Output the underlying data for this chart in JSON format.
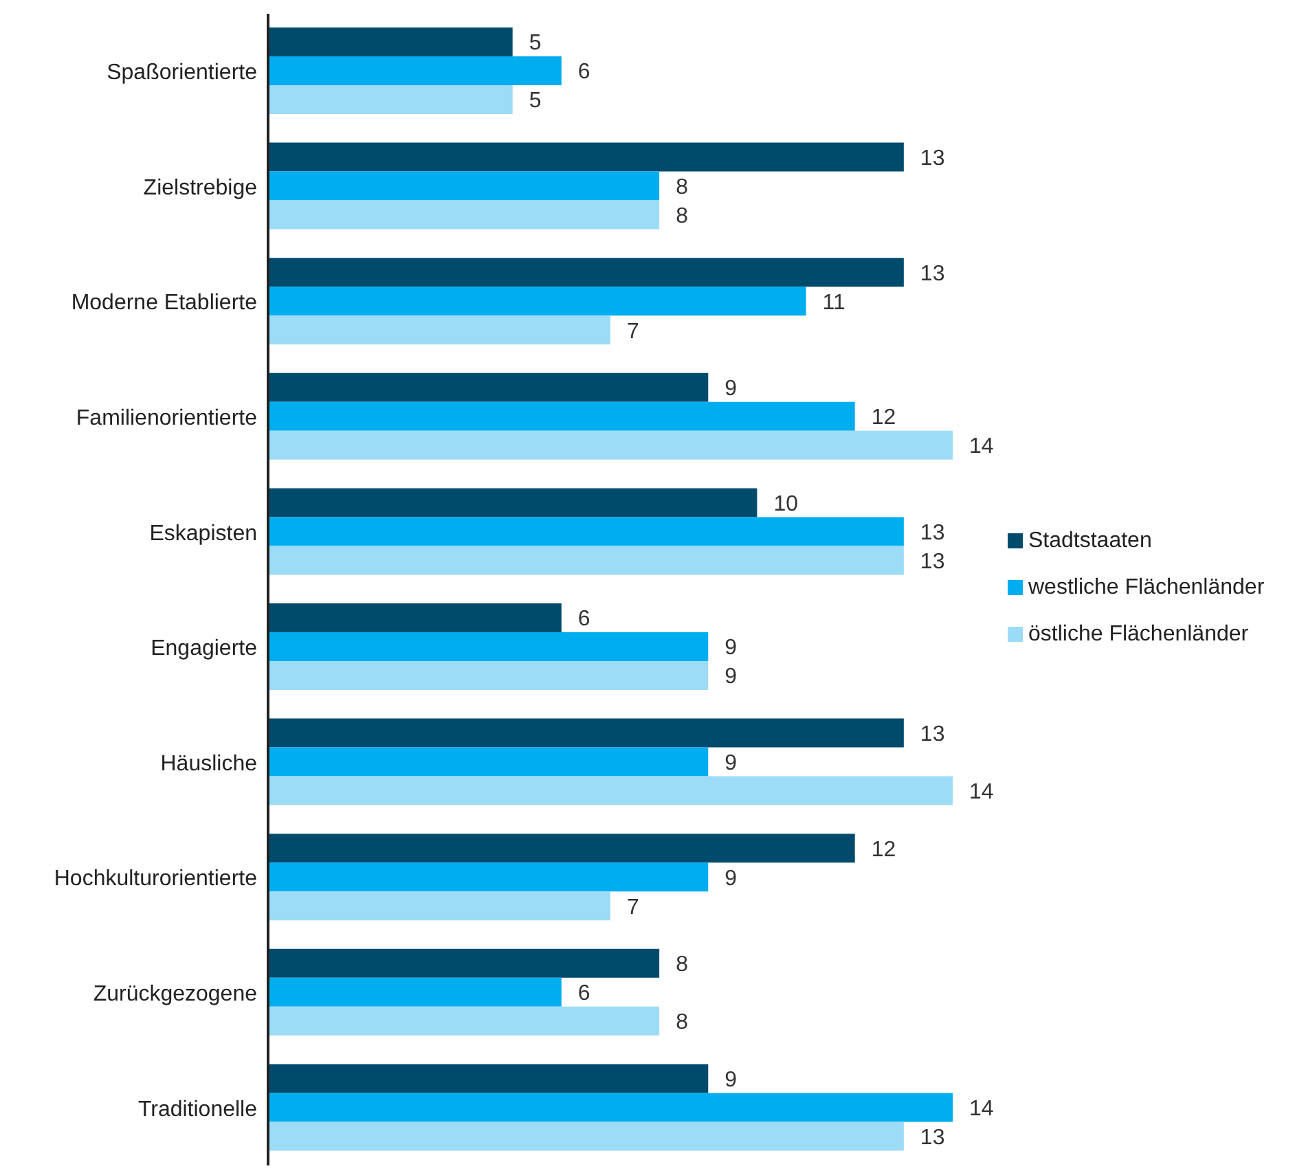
{
  "chart_data": {
    "type": "bar",
    "orientation": "horizontal",
    "data_labels": true,
    "legend": "right",
    "categories": [
      "Spaßorientierte",
      "Zielstrebige",
      "Moderne Etablierte",
      "Familienorientierte",
      "Eskapisten",
      "Engagierte",
      "Häusliche",
      "Hochkulturorientierte",
      "Zurückgezogene",
      "Traditionelle"
    ],
    "series": [
      {
        "name": "Stadtstaaten",
        "color": "#004b6c",
        "values": [
          5,
          13,
          13,
          9,
          10,
          6,
          13,
          12,
          8,
          9
        ]
      },
      {
        "name": "westliche Flächenländer",
        "color": "#00aeef",
        "values": [
          6,
          8,
          11,
          12,
          13,
          9,
          9,
          9,
          6,
          14
        ]
      },
      {
        "name": "östliche Flächenländer",
        "color": "#9ddcf7",
        "values": [
          5,
          8,
          7,
          14,
          13,
          9,
          14,
          7,
          8,
          13
        ]
      }
    ]
  }
}
